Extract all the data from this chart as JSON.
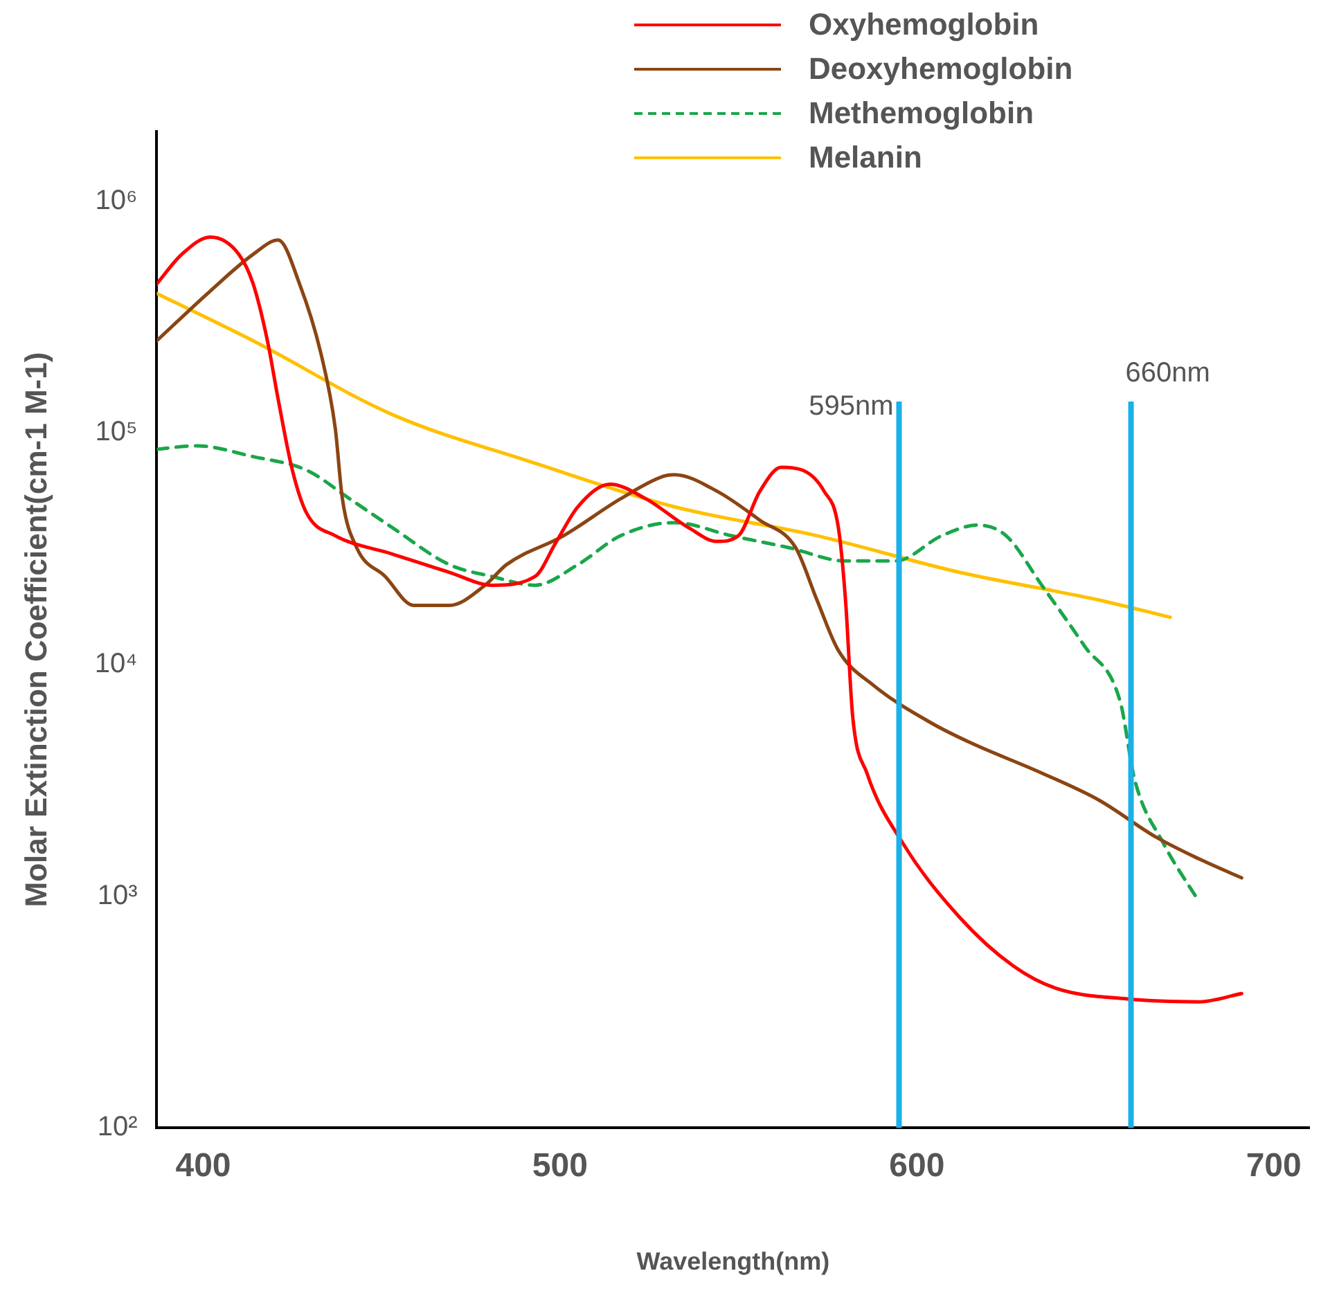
{
  "chart_data": {
    "type": "line",
    "xlabel": "Wavelength(nm)",
    "ylabel": "Molar Extinction Coefficient(cm-1 M-1)",
    "log": "y",
    "grid": false,
    "legend": "top right",
    "marker": "none",
    "xlim": [
      387,
      710
    ],
    "xticks": [
      400,
      500,
      600,
      700
    ],
    "ylim": [
      100,
      2000000
    ],
    "yticks": [
      {
        "value": 100,
        "label": "10²"
      },
      {
        "value": 1000,
        "label": "10³"
      },
      {
        "value": 10000,
        "label": "10⁴"
      },
      {
        "value": 100000,
        "label": "10⁵"
      },
      {
        "value": 1000000,
        "label": "10⁶"
      }
    ],
    "ref_lines": [
      {
        "axis": "x",
        "value": 595,
        "label": "595nm",
        "color": "#1ab0e8"
      },
      {
        "axis": "x",
        "value": 660,
        "label": "660nm",
        "color": "#1ab0e8"
      }
    ],
    "series": [
      {
        "name": "Oxyhemoglobin",
        "color": "#ff0000",
        "line_style": "solid",
        "x": [
          387,
          394,
          402,
          410,
          414,
          418,
          421,
          425,
          429,
          437,
          453,
          469,
          481,
          493,
          499,
          505,
          514,
          524,
          536,
          544,
          550,
          556,
          562,
          568,
          574,
          578,
          580,
          582,
          586,
          596,
          612,
          627,
          639,
          659,
          679,
          691
        ],
        "values": [
          440000,
          590000,
          700000,
          590000,
          440000,
          250000,
          140000,
          69000,
          45000,
          36000,
          30000,
          25000,
          22000,
          24000,
          34000,
          48000,
          60000,
          52000,
          39000,
          34000,
          36000,
          56000,
          71000,
          69000,
          56000,
          39000,
          19000,
          6000,
          3400,
          1700,
          810,
          500,
          400,
          360,
          350,
          380
        ]
      },
      {
        "name": "Deoxyhemoglobin",
        "color": "#8b4513",
        "line_style": "solid",
        "x": [
          387,
          402,
          414,
          421,
          427,
          433,
          437,
          439,
          443,
          451,
          459,
          469,
          479,
          485,
          501,
          517,
          529,
          532,
          544,
          556,
          566,
          572,
          578,
          588,
          604,
          615,
          635,
          651,
          667,
          679,
          691
        ],
        "values": [
          250000,
          410000,
          590000,
          680000,
          440000,
          220000,
          105000,
          52000,
          32000,
          24000,
          18000,
          18000,
          22000,
          27000,
          36000,
          52000,
          65000,
          66000,
          56000,
          42000,
          32000,
          19000,
          11500,
          8100,
          5600,
          4600,
          3400,
          2600,
          1800,
          1450,
          1200
        ]
      },
      {
        "name": "Methemoglobin",
        "color": "#1aa64a",
        "line_style": "dashed",
        "x": [
          387,
          398,
          414,
          429,
          441,
          453,
          469,
          481,
          493,
          505,
          517,
          532,
          548,
          564,
          580,
          594,
          607,
          617,
          625,
          635,
          647,
          657,
          661,
          669,
          679
        ],
        "values": [
          85000,
          88000,
          79000,
          69000,
          52000,
          39000,
          27000,
          24000,
          22000,
          27000,
          36000,
          41000,
          36000,
          32000,
          28000,
          28000,
          36000,
          40000,
          36000,
          22000,
          12000,
          6900,
          3200,
          1700,
          950
        ]
      },
      {
        "name": "Melanin",
        "color": "#ffc000",
        "line_style": "solid",
        "x": [
          387,
          414,
          453,
          493,
          532,
          572,
          612,
          651,
          671
        ],
        "values": [
          400000,
          250000,
          120000,
          74000,
          48000,
          36000,
          25000,
          19000,
          16000
        ]
      }
    ]
  }
}
